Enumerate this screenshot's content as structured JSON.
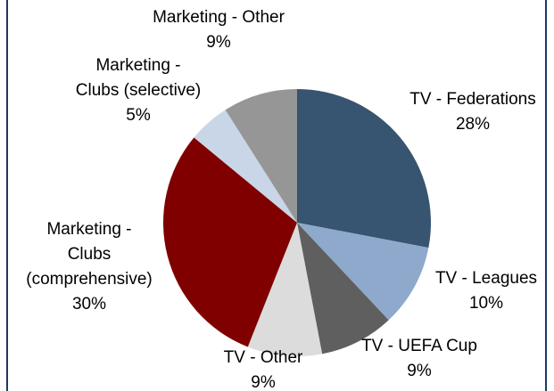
{
  "chart_data": {
    "type": "pie",
    "categories": [
      "TV - Federations",
      "TV - Leagues",
      "TV - UEFA Cup",
      "TV - Other",
      "Marketing - Clubs (comprehensive)",
      "Marketing - Clubs (selective)",
      "Marketing - Other"
    ],
    "values": [
      28,
      10,
      9,
      9,
      30,
      5,
      9
    ],
    "value_labels": [
      "28%",
      "10%",
      "9%",
      "9%",
      "30%",
      "5%",
      "9%"
    ],
    "colors": [
      "#375470",
      "#8ea9cb",
      "#5f5f5f",
      "#dcdcdc",
      "#800000",
      "#c9d6e8",
      "#969696"
    ]
  }
}
